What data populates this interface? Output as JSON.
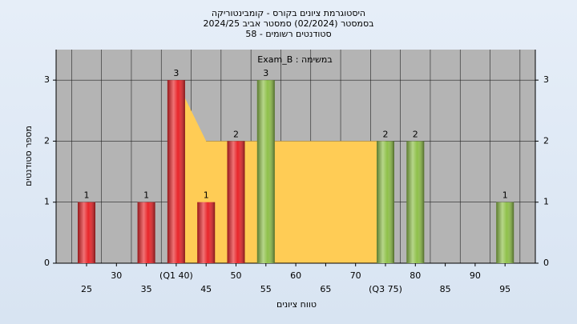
{
  "chart_data": {
    "type": "bar",
    "title_lines": [
      "היסטוגרמת ציונים בקורס - קומבינטוריקה",
      "בסמסטר  (02/2024)  סמסטר אביב 2024/25",
      "סטודנטים רשומים - 58"
    ],
    "subtitle": "Exam_B : במשימה",
    "x_label": "טווח ציונים",
    "y_label": "מספר סטודנטים",
    "categories": [
      "25",
      "30",
      "35",
      "(Q1 40)",
      "45",
      "50",
      "55",
      "60",
      "65",
      "70",
      "(Q3 75)",
      "80",
      "85",
      "90",
      "95"
    ],
    "values": [
      1,
      0,
      1,
      3,
      1,
      2,
      3,
      0,
      0,
      0,
      2,
      2,
      0,
      0,
      1
    ],
    "colors": [
      "#e8262a",
      "#e8262a",
      "#e8262a",
      "#e8262a",
      "#e8262a",
      "#e8262a",
      "#8fc04a",
      "#8fc04a",
      "#8fc04a",
      "#8fc04a",
      "#8fc04a",
      "#8fc04a",
      "#8fc04a",
      "#8fc04a",
      "#8fc04a"
    ],
    "quartile_band": {
      "q1": 40,
      "q3": 75,
      "height": 2,
      "color": "#ffcc55"
    },
    "ylim": [
      0,
      3.5
    ],
    "yticks": [
      0,
      1,
      2,
      3
    ],
    "grid": true
  }
}
